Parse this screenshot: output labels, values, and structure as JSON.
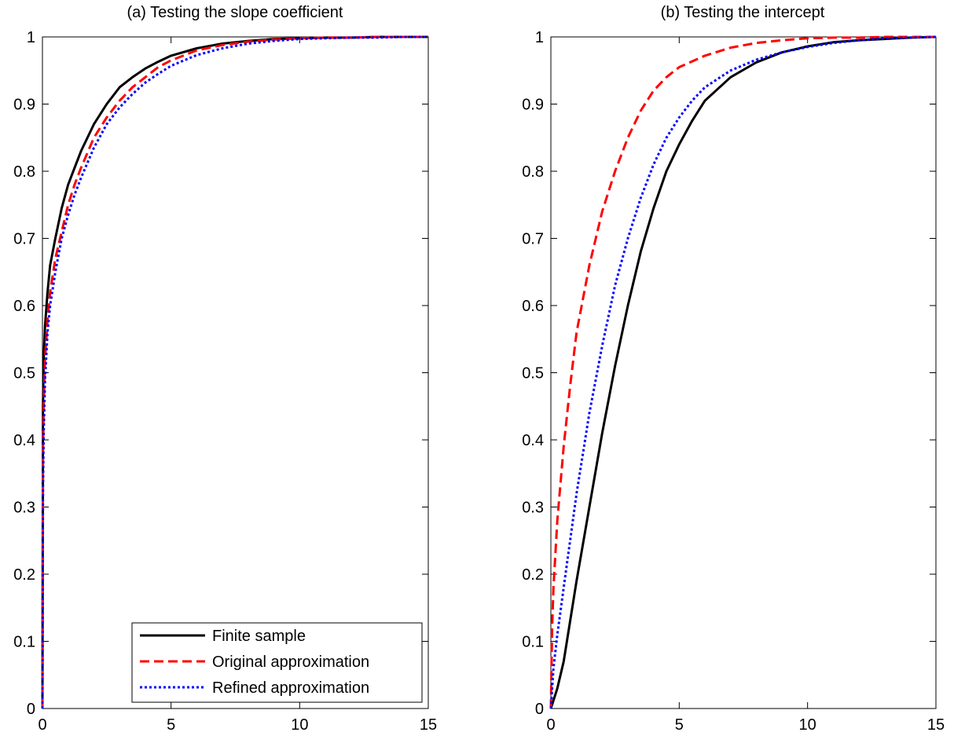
{
  "chart_data": [
    {
      "type": "line",
      "title": "(a) Testing the slope coefficient",
      "xlabel": "",
      "ylabel": "",
      "xlim": [
        0,
        15
      ],
      "ylim": [
        0,
        1
      ],
      "xticks": [
        "0",
        "5",
        "10",
        "15"
      ],
      "yticks": [
        "0",
        "0.1",
        "0.2",
        "0.3",
        "0.4",
        "0.5",
        "0.6",
        "0.7",
        "0.8",
        "0.9",
        "1"
      ],
      "grid": false,
      "legend": {
        "position": "bottom-right",
        "entries": [
          "Finite sample",
          "Original approximation",
          "Refined approximation"
        ]
      },
      "series": [
        {
          "name": "Finite sample",
          "color": "#000000",
          "style": "solid",
          "x": [
            0,
            0.02,
            0.05,
            0.1,
            0.2,
            0.3,
            0.5,
            0.75,
            1,
            1.25,
            1.5,
            2,
            2.5,
            3,
            3.5,
            4,
            4.5,
            5,
            6,
            7,
            8,
            9,
            10,
            11,
            12,
            13,
            14,
            15
          ],
          "y": [
            0,
            0.45,
            0.52,
            0.57,
            0.62,
            0.66,
            0.7,
            0.745,
            0.78,
            0.805,
            0.83,
            0.87,
            0.9,
            0.925,
            0.94,
            0.953,
            0.963,
            0.972,
            0.983,
            0.99,
            0.994,
            0.997,
            0.998,
            0.999,
            0.999,
            1.0,
            1.0,
            1.0
          ]
        },
        {
          "name": "Original approximation",
          "color": "#ff0000",
          "style": "dashed",
          "x": [
            0,
            0.02,
            0.05,
            0.1,
            0.2,
            0.3,
            0.5,
            0.75,
            1,
            1.25,
            1.5,
            2,
            2.5,
            3,
            3.5,
            4,
            4.5,
            5,
            6,
            7,
            8,
            9,
            10,
            11,
            12,
            13,
            14,
            15
          ],
          "y": [
            0,
            0.38,
            0.45,
            0.52,
            0.58,
            0.62,
            0.67,
            0.71,
            0.75,
            0.78,
            0.805,
            0.85,
            0.88,
            0.905,
            0.925,
            0.94,
            0.955,
            0.965,
            0.98,
            0.988,
            0.993,
            0.996,
            0.998,
            0.999,
            0.999,
            1.0,
            1.0,
            1.0
          ]
        },
        {
          "name": "Refined approximation",
          "color": "#0000ff",
          "style": "dotted",
          "x": [
            0,
            0.02,
            0.05,
            0.1,
            0.2,
            0.3,
            0.5,
            0.75,
            1,
            1.25,
            1.5,
            2,
            2.5,
            3,
            3.5,
            4,
            4.5,
            5,
            6,
            7,
            8,
            9,
            10,
            11,
            12,
            13,
            14,
            15
          ],
          "y": [
            0,
            0.33,
            0.41,
            0.49,
            0.56,
            0.6,
            0.65,
            0.7,
            0.735,
            0.765,
            0.79,
            0.835,
            0.87,
            0.895,
            0.915,
            0.932,
            0.945,
            0.957,
            0.973,
            0.983,
            0.99,
            0.994,
            0.997,
            0.998,
            0.999,
            0.999,
            1.0,
            1.0
          ]
        }
      ]
    },
    {
      "type": "line",
      "title": "(b) Testing the intercept",
      "xlabel": "",
      "ylabel": "",
      "xlim": [
        0,
        15
      ],
      "ylim": [
        0,
        1
      ],
      "xticks": [
        "0",
        "5",
        "10",
        "15"
      ],
      "yticks": [
        "0",
        "0.1",
        "0.2",
        "0.3",
        "0.4",
        "0.5",
        "0.6",
        "0.7",
        "0.8",
        "0.9",
        "1"
      ],
      "grid": false,
      "series": [
        {
          "name": "Finite sample",
          "color": "#000000",
          "style": "solid",
          "x": [
            0,
            0.25,
            0.5,
            0.75,
            1,
            1.5,
            2,
            2.5,
            3,
            3.5,
            4,
            4.5,
            5,
            5.5,
            6,
            7,
            8,
            9,
            10,
            11,
            12,
            13,
            14,
            15
          ],
          "y": [
            0,
            0.03,
            0.07,
            0.13,
            0.19,
            0.3,
            0.41,
            0.51,
            0.6,
            0.68,
            0.745,
            0.8,
            0.84,
            0.875,
            0.905,
            0.94,
            0.962,
            0.977,
            0.986,
            0.992,
            0.995,
            0.997,
            0.999,
            1.0
          ]
        },
        {
          "name": "Original approximation",
          "color": "#ff0000",
          "style": "dashed",
          "x": [
            0,
            0.05,
            0.1,
            0.25,
            0.5,
            0.75,
            1,
            1.5,
            2,
            2.5,
            3,
            3.5,
            4,
            4.5,
            5,
            6,
            7,
            8,
            9,
            10,
            11,
            12,
            13,
            14,
            15
          ],
          "y": [
            0,
            0.12,
            0.18,
            0.28,
            0.39,
            0.48,
            0.56,
            0.66,
            0.74,
            0.8,
            0.85,
            0.89,
            0.92,
            0.94,
            0.955,
            0.972,
            0.984,
            0.991,
            0.995,
            0.998,
            0.999,
            0.999,
            1.0,
            1.0,
            1.0
          ]
        },
        {
          "name": "Refined approximation",
          "color": "#0000ff",
          "style": "dotted",
          "x": [
            0,
            0.1,
            0.25,
            0.5,
            0.75,
            1,
            1.5,
            2,
            2.5,
            3,
            3.5,
            4,
            4.5,
            5,
            5.5,
            6,
            7,
            8,
            9,
            10,
            11,
            12,
            13,
            14,
            15
          ],
          "y": [
            0,
            0.06,
            0.11,
            0.18,
            0.25,
            0.32,
            0.44,
            0.54,
            0.63,
            0.7,
            0.76,
            0.81,
            0.85,
            0.88,
            0.905,
            0.925,
            0.95,
            0.966,
            0.977,
            0.985,
            0.991,
            0.995,
            0.998,
            0.999,
            1.0
          ]
        }
      ]
    }
  ]
}
